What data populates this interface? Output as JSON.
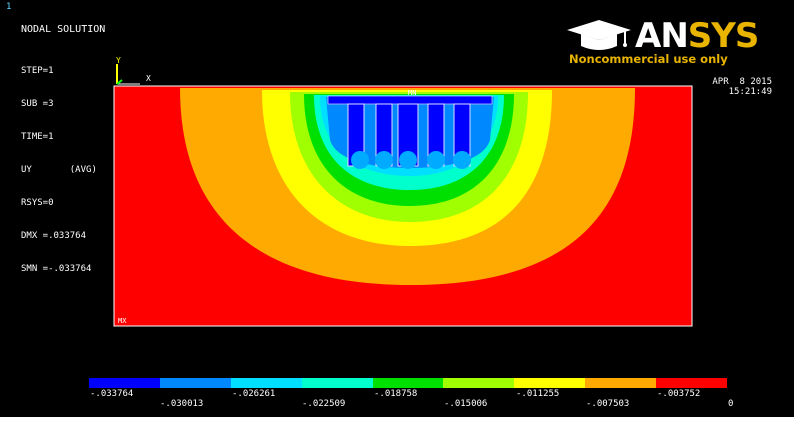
{
  "window": {
    "number": "1"
  },
  "header": {
    "title": "NODAL SOLUTION",
    "info_lines": [
      "STEP=1",
      "SUB =3",
      "TIME=1",
      "UY       (AVG)",
      "RSYS=0",
      "DMX =.033764",
      "SMN =-.033764"
    ],
    "date": "APR  8 2015",
    "time": "15:21:49"
  },
  "logo": {
    "main_an": "AN",
    "main_sys": "SYS",
    "subtitle": "Noncommercial use only"
  },
  "axes": {
    "y": "Y",
    "x": "X"
  },
  "markers": {
    "min": "MN",
    "max": "MX"
  },
  "legend": {
    "colors": [
      "#0000ff",
      "#0088ff",
      "#00dfff",
      "#00ffcc",
      "#00e000",
      "#a0ff00",
      "#ffff00",
      "#ffaa00",
      "#ff0000"
    ],
    "upper_labels": [
      "-.033764",
      "-.026261",
      "-.018758",
      "-.011255",
      "-.003752"
    ],
    "lower_labels": [
      "-.030013",
      "-.022509",
      "-.015006",
      "-.007503",
      "0"
    ]
  },
  "colors": {
    "background": "#000000",
    "accent": "#e8b400"
  }
}
